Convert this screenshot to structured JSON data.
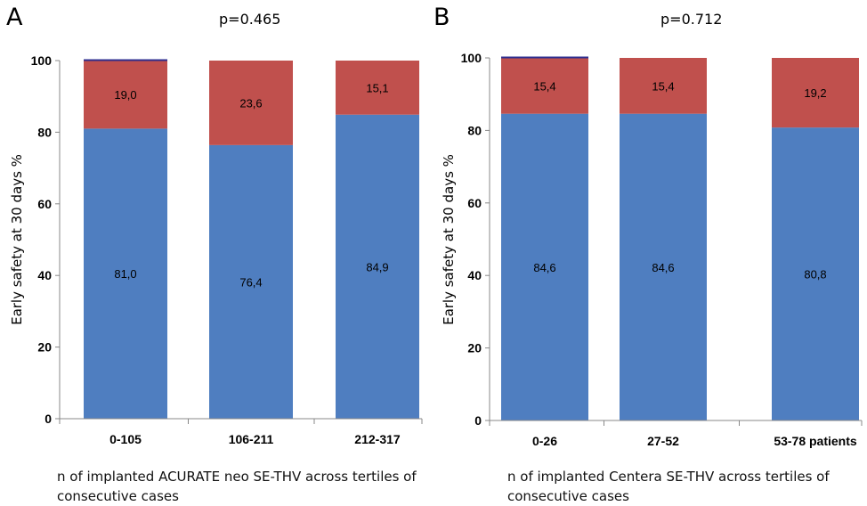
{
  "colors": {
    "primary": "#4f7ec0",
    "secondary": "#c0504d",
    "top_line": "#2e2e8f",
    "axis": "#888888"
  },
  "chart_data": [
    {
      "type": "bar",
      "stacked": true,
      "panel_label": "A",
      "pvalue": "p=0.465",
      "ylabel": "Early safety at 30 days %",
      "xlabel": "n of implanted ACURATE neo SE-THV across tertiles of consecutive cases",
      "ylim": [
        0,
        100
      ],
      "yticks": [
        "0",
        "20",
        "40",
        "60",
        "80",
        "100"
      ],
      "categories": [
        "0-105",
        "106-211",
        "212-317"
      ],
      "series": [
        {
          "values": [
            81.0,
            76.4,
            84.9
          ],
          "labels": [
            "81,0",
            "76,4",
            "84,9"
          ],
          "color": "#4f7ec0"
        },
        {
          "values": [
            19.0,
            23.6,
            15.1
          ],
          "labels": [
            "19,0",
            "23,6",
            "15,1"
          ],
          "color": "#c0504d"
        }
      ],
      "grid": false,
      "legend": "none"
    },
    {
      "type": "bar",
      "stacked": true,
      "panel_label": "B",
      "pvalue": "p=0.712",
      "ylabel": "Early safety at 30 days %",
      "xlabel": "n of implanted Centera SE-THV across tertiles of consecutive cases",
      "ylim": [
        0,
        100
      ],
      "yticks": [
        "0",
        "20",
        "40",
        "60",
        "80",
        "100"
      ],
      "categories": [
        "0-26",
        "27-52",
        "53-78 patients"
      ],
      "series": [
        {
          "values": [
            84.6,
            84.6,
            80.8
          ],
          "labels": [
            "84,6",
            "84,6",
            "80,8"
          ],
          "color": "#4f7ec0"
        },
        {
          "values": [
            15.4,
            15.4,
            19.2
          ],
          "labels": [
            "15,4",
            "15,4",
            "19,2"
          ],
          "color": "#c0504d"
        }
      ],
      "grid": false,
      "legend": "none"
    }
  ]
}
